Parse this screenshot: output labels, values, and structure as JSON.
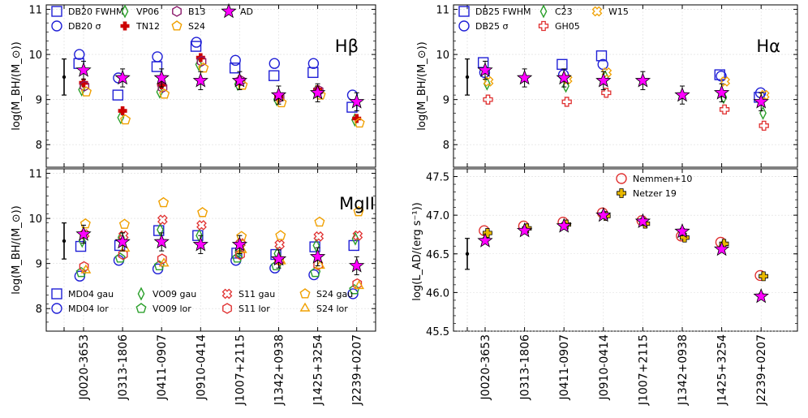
{
  "chart_data": {
    "type": "scatter",
    "categories": [
      "J0020-3653",
      "J0313-1806",
      "J0411-0907",
      "J0910-0414",
      "J1007+2115",
      "J1342+0938",
      "J1425+3254",
      "J2239+0207"
    ],
    "panels": [
      {
        "id": "hb",
        "title": "Hβ",
        "ylabel": "log(M_BH/(M_⊙))",
        "ylim": [
          7.5,
          11.1
        ],
        "yticks": [
          8,
          9,
          10,
          11
        ],
        "ref_errbar": {
          "y": 9.5,
          "lo": 9.1,
          "hi": 9.9
        },
        "legend_cols": 4,
        "series": [
          {
            "name": "DB20 FWHM",
            "label": "DB20 FWHM",
            "marker": "square",
            "color": "#1f1fd6",
            "offset": -0.2,
            "values": [
              9.8,
              9.1,
              9.73,
              10.18,
              9.7,
              9.53,
              9.6,
              8.83
            ]
          },
          {
            "name": "DB20 σ",
            "label": "DB20 σ",
            "marker": "circle",
            "color": "#1f1fd6",
            "offset": -0.18,
            "values": [
              10.0,
              9.48,
              9.95,
              10.27,
              9.87,
              9.8,
              9.8,
              9.1
            ]
          },
          {
            "name": "VP06",
            "label": "VP06",
            "marker": "diamond",
            "color": "#2ca02c",
            "offset": -0.08,
            "values": [
              9.22,
              8.6,
              9.17,
              9.78,
              9.34,
              9.0,
              9.18,
              8.55
            ]
          },
          {
            "name": "TN12",
            "label": "TN12",
            "marker": "pluscross",
            "color": "#cc0000",
            "offset": 0.0,
            "values": [
              9.37,
              8.75,
              9.33,
              9.93,
              9.44,
              9.07,
              9.22,
              8.58
            ]
          },
          {
            "name": "B13",
            "label": "B13",
            "marker": "hexagon",
            "color": "#8b1a6b",
            "offset": 0.04,
            "values": [
              9.3,
              null,
              9.27,
              9.85,
              9.42,
              9.05,
              9.2,
              null
            ]
          },
          {
            "name": "S24",
            "label": "S24",
            "marker": "pentagon",
            "color": "#f0a000",
            "offset": 0.12,
            "values": [
              9.17,
              8.55,
              9.12,
              9.7,
              9.32,
              8.93,
              9.1,
              8.48
            ]
          },
          {
            "name": "AD",
            "label": "AD",
            "marker": "star",
            "color": "#ff00ff",
            "offset": 0.0,
            "values": [
              9.65,
              9.48,
              9.48,
              9.42,
              9.42,
              9.1,
              9.15,
              8.95
            ],
            "err": 0.2
          }
        ]
      },
      {
        "id": "ha",
        "title": "Hα",
        "ylabel": "log(M_BH/(M_⊙))",
        "ylim": [
          7.5,
          11.1
        ],
        "yticks": [
          8,
          9,
          10,
          11
        ],
        "ref_errbar": {
          "y": 9.5,
          "lo": 9.1,
          "hi": 9.9
        },
        "legend_cols": 3,
        "series": [
          {
            "name": "DB25 FWHM",
            "label": "DB25 FWHM",
            "marker": "square",
            "color": "#1f1fd6",
            "offset": -0.08,
            "values": [
              9.82,
              null,
              9.78,
              9.97,
              null,
              null,
              9.55,
              9.05
            ]
          },
          {
            "name": "DB25 σ",
            "label": "DB25 σ",
            "marker": "circle",
            "color": "#1f1fd6",
            "offset": -0.02,
            "values": [
              9.6,
              null,
              9.55,
              9.78,
              null,
              null,
              9.52,
              9.15
            ]
          },
          {
            "name": "C23",
            "label": "C23",
            "marker": "diamond",
            "color": "#2ca02c",
            "offset": 0.08,
            "values": [
              9.35,
              null,
              9.3,
              9.5,
              null,
              null,
              9.05,
              8.7
            ]
          },
          {
            "name": "GH05",
            "label": "GH05",
            "marker": "plus",
            "color": "#e03030",
            "offset": 0.12,
            "values": [
              9.0,
              null,
              8.95,
              9.15,
              null,
              null,
              8.78,
              8.42
            ]
          },
          {
            "name": "W15",
            "label": "W15",
            "marker": "xcross",
            "color": "#f0a000",
            "offset": 0.14,
            "values": [
              9.4,
              null,
              9.45,
              9.6,
              null,
              null,
              9.4,
              9.1
            ]
          },
          {
            "name": "AD",
            "label": "",
            "marker": "star",
            "color": "#ff00ff",
            "offset": 0.0,
            "values": [
              9.65,
              9.48,
              9.48,
              9.42,
              9.42,
              9.1,
              9.15,
              8.95
            ],
            "err": 0.2
          }
        ]
      },
      {
        "id": "mg",
        "title": "MgII",
        "ylabel": "log(M_BH/(M_⊙))",
        "ylim": [
          7.5,
          11.1
        ],
        "yticks": [
          8,
          9,
          10,
          11
        ],
        "ref_errbar": {
          "y": 9.5,
          "lo": 9.1,
          "hi": 9.9
        },
        "legend_cols": 4,
        "series": [
          {
            "name": "MD04 gau",
            "label": "MD04 gau",
            "marker": "square",
            "color": "#1f1fd6",
            "offset": -0.12,
            "values": [
              9.38,
              9.4,
              9.73,
              9.62,
              9.23,
              9.2,
              9.37,
              9.4
            ]
          },
          {
            "name": "MD04 lor",
            "label": "MD04 lor",
            "marker": "circle",
            "color": "#1f1fd6",
            "offset": -0.16,
            "values": [
              8.72,
              9.07,
              8.88,
              null,
              9.07,
              8.9,
              8.75,
              8.33
            ]
          },
          {
            "name": "VO09 gau",
            "label": "VO09 gau",
            "marker": "diamond",
            "color": "#2ca02c",
            "offset": -0.06,
            "values": [
              9.5,
              9.58,
              9.75,
              9.62,
              9.25,
              9.22,
              9.4,
              9.55
            ]
          },
          {
            "name": "VO09 lor",
            "label": "VO09 lor",
            "marker": "pentagon",
            "color": "#2ca02c",
            "offset": -0.1,
            "values": [
              8.8,
              9.12,
              8.95,
              null,
              9.12,
              8.95,
              8.8,
              8.42
            ]
          },
          {
            "name": "S11 gau",
            "label": "S11 gau",
            "marker": "xcross",
            "color": "#e03030",
            "offset": 0.04,
            "values": [
              9.65,
              9.62,
              9.97,
              9.85,
              9.45,
              9.42,
              9.6,
              9.62
            ]
          },
          {
            "name": "S11 lor",
            "label": "S11 lor",
            "marker": "hexagon",
            "color": "#e03030",
            "offset": 0.02,
            "values": [
              8.93,
              9.2,
              9.1,
              null,
              9.2,
              9.07,
              8.97,
              8.55
            ]
          },
          {
            "name": "S24 gau",
            "label": "S24 gau",
            "marker": "pentagon",
            "color": "#f0a000",
            "offset": 0.08,
            "values": [
              9.88,
              9.87,
              10.35,
              10.13,
              9.6,
              9.62,
              9.92,
              10.15
            ]
          },
          {
            "name": "S24 lor",
            "label": "S24 lor",
            "marker": "triangle",
            "color": "#f0a000",
            "offset": 0.1,
            "values": [
              8.85,
              9.33,
              9.0,
              null,
              9.3,
              9.05,
              8.95,
              8.5
            ]
          },
          {
            "name": "AD",
            "label": "",
            "marker": "star",
            "color": "#ff00ff",
            "offset": 0.0,
            "values": [
              9.65,
              9.48,
              9.48,
              9.42,
              9.42,
              9.1,
              9.15,
              8.95
            ],
            "err": 0.2
          }
        ]
      },
      {
        "id": "lad",
        "title": "",
        "ylabel": "log(L_AD/(erg s⁻¹))",
        "ylim": [
          45.5,
          47.6
        ],
        "yticks": [
          45.5,
          46.0,
          46.5,
          47.0,
          47.5
        ],
        "ref_errbar": {
          "y": 46.5,
          "lo": 46.3,
          "hi": 46.7
        },
        "legend_cols": 2,
        "series": [
          {
            "name": "Nemmen+10",
            "label": "Nemmen+10",
            "marker": "circle",
            "color": "#e03030",
            "offset": -0.04,
            "values": [
              46.8,
              46.86,
              46.91,
              47.03,
              46.93,
              46.73,
              46.65,
              46.22
            ]
          },
          {
            "name": "Netzer 19",
            "label": "Netzer 19",
            "marker": "plus",
            "color": "#e8b800",
            "stroke": "#000000",
            "offset": 0.1,
            "values": [
              46.77,
              46.83,
              46.88,
              46.99,
              46.89,
              46.71,
              46.63,
              46.21
            ]
          },
          {
            "name": "AD",
            "label": "",
            "marker": "star",
            "color": "#ff00ff",
            "offset": 0.0,
            "values": [
              46.67,
              46.8,
              46.86,
              47.0,
              46.92,
              46.79,
              46.56,
              45.95
            ],
            "err": 0.04
          }
        ]
      }
    ]
  }
}
